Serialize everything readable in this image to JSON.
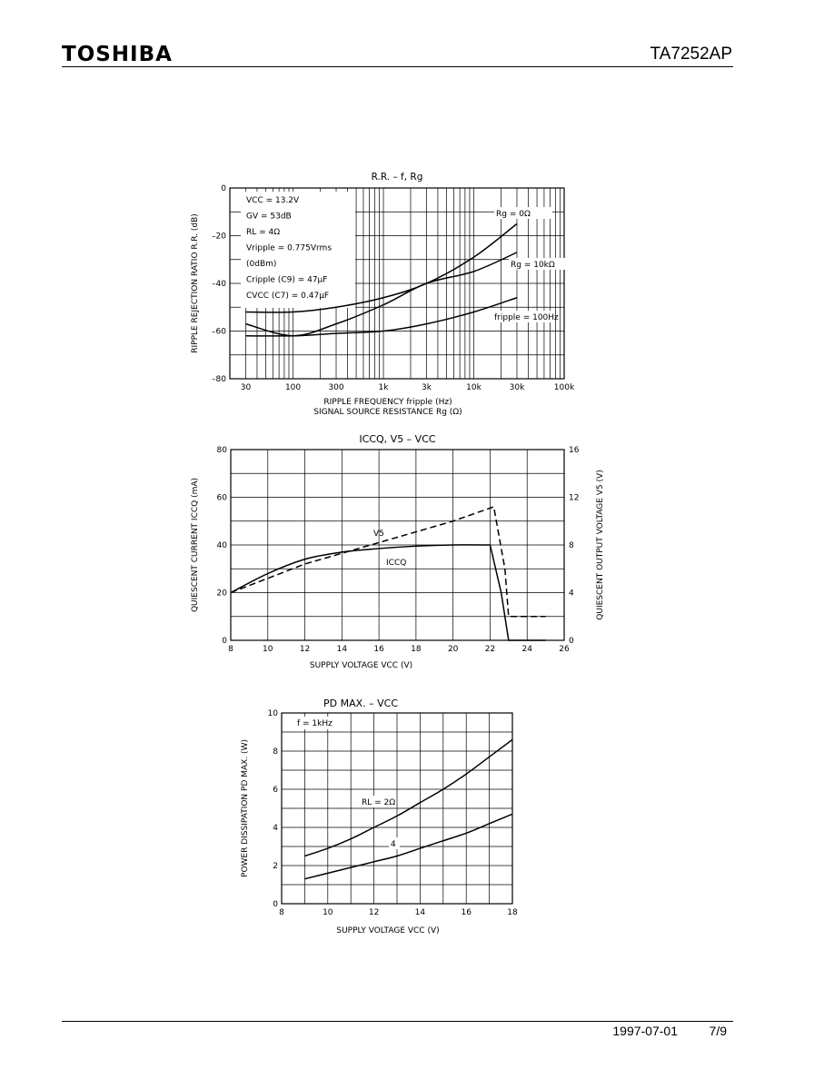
{
  "header": {
    "brand": "TOSHIBA",
    "part_number": "TA7252AP"
  },
  "footer": {
    "date": "1997-07-01",
    "page": "7/9"
  },
  "chart_data": [
    {
      "type": "line",
      "title": "R.R. – f, Rg",
      "xlabel": "RIPPLE FREQUENCY  fripple (Hz)",
      "xlabel2": "SIGNAL SOURCE RESISTANCE  Rg (Ω)",
      "ylabel": "RIPPLE REJECTION RATIO  R.R. (dB)",
      "x_scale": "log",
      "xlim": [
        20,
        100000
      ],
      "ylim": [
        -80,
        0
      ],
      "x_ticks": [
        30,
        100,
        300,
        1000,
        3000,
        10000,
        30000,
        100000
      ],
      "x_tick_labels": [
        "30",
        "100",
        "300",
        "1k",
        "3k",
        "10k",
        "30k",
        "100k"
      ],
      "y_ticks": [
        0,
        -20,
        -40,
        -60,
        -80
      ],
      "y_tick_labels": [
        "0",
        "–20",
        "–40",
        "–60",
        "–80"
      ],
      "conditions": [
        "VCC = 13.2V",
        "GV = 53dB",
        "RL = 4Ω",
        "Vripple = 0.775Vrms",
        "(0dBm)",
        "Cripple (C9) = 47μF",
        "CVCC (C7) = 0.47μF"
      ],
      "series": [
        {
          "name": "Rg = 0Ω",
          "x": [
            30,
            100,
            300,
            1000,
            3000,
            10000,
            30000
          ],
          "y": [
            -52,
            -52,
            -50,
            -46,
            -40,
            -29,
            -15
          ]
        },
        {
          "name": "Rg = 10kΩ",
          "x": [
            30,
            100,
            300,
            1000,
            3000,
            10000,
            30000
          ],
          "y": [
            -57,
            -62,
            -57,
            -49,
            -40,
            -35,
            -27
          ]
        },
        {
          "name": "fripple = 100Hz",
          "x": [
            30,
            100,
            300,
            1000,
            3000,
            10000,
            30000
          ],
          "y": [
            -62,
            -62,
            -61,
            -60,
            -57,
            -52,
            -46
          ]
        }
      ],
      "grid": true
    },
    {
      "type": "line",
      "title": "ICCQ, V5 – VCC",
      "xlabel": "SUPPLY VOLTAGE  VCC (V)",
      "ylabel": "QUIESCENT CURRENT  ICCQ (mA)",
      "ylabel_right": "QUIESCENT OUTPUT VOLTAGE  V5 (V)",
      "xlim": [
        8,
        26
      ],
      "ylim": [
        0,
        80
      ],
      "ylim_right": [
        0,
        16
      ],
      "x_ticks": [
        8,
        10,
        12,
        14,
        16,
        18,
        20,
        22,
        24,
        26
      ],
      "y_ticks": [
        0,
        20,
        40,
        60,
        80
      ],
      "y_ticks_right": [
        0,
        4,
        8,
        12,
        16
      ],
      "series": [
        {
          "name": "V5",
          "axis": "right",
          "style": "dashed",
          "x": [
            8,
            12,
            16,
            20,
            22.2,
            22.8,
            23,
            25
          ],
          "y": [
            4,
            6.4,
            8.2,
            10,
            11.2,
            6,
            2,
            2
          ]
        },
        {
          "name": "ICCQ",
          "axis": "left",
          "style": "solid",
          "x": [
            8,
            10,
            12,
            14,
            16,
            18,
            20,
            22,
            22.6,
            23,
            25
          ],
          "y": [
            20,
            28,
            34,
            37,
            38.5,
            39.5,
            40,
            40,
            20,
            0,
            0
          ]
        }
      ],
      "grid": true
    },
    {
      "type": "line",
      "title": "PD MAX. – VCC",
      "xlabel": "SUPPLY VOLTAGE  VCC (V)",
      "ylabel": "POWER DISSIPATION  PD MAX. (W)",
      "annotation": "f = 1kHz",
      "xlim": [
        8,
        18
      ],
      "ylim": [
        0,
        10
      ],
      "x_ticks": [
        8,
        10,
        12,
        14,
        16,
        18
      ],
      "y_ticks": [
        0,
        2,
        4,
        6,
        8,
        10
      ],
      "series": [
        {
          "name": "RL = 2Ω",
          "x": [
            9,
            10,
            11,
            12,
            13,
            14,
            15,
            16,
            17,
            18
          ],
          "y": [
            2.5,
            2.9,
            3.4,
            4.0,
            4.6,
            5.3,
            6.0,
            6.8,
            7.7,
            8.6
          ]
        },
        {
          "name": "4",
          "x": [
            9,
            10,
            11,
            12,
            13,
            14,
            15,
            16,
            17,
            18
          ],
          "y": [
            1.3,
            1.6,
            1.9,
            2.2,
            2.5,
            2.9,
            3.3,
            3.7,
            4.2,
            4.7
          ]
        }
      ],
      "grid": true
    }
  ]
}
